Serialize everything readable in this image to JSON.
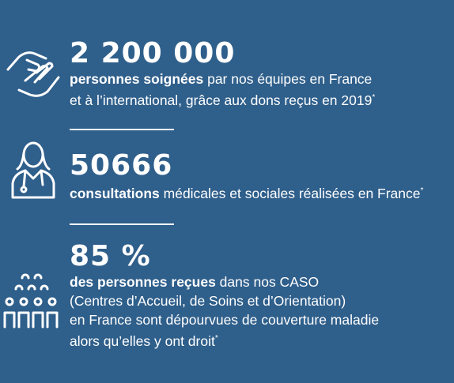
{
  "stats": [
    {
      "value": "2 200 000",
      "bold": "personnes soignées",
      "rest": " par nos équipes en France",
      "lines": [
        "et à l’international, grâce aux dons reçus en 2019"
      ],
      "note": "*"
    },
    {
      "value": "50666",
      "bold": "consultations",
      "rest": " médicales et sociales réalisées en France",
      "lines": [],
      "note": "*"
    },
    {
      "value": "85 %",
      "bold": "des personnes reçues",
      "rest": " dans nos CASO",
      "lines": [
        "(Centres d’Accueil, de Soins et d’Orientation)",
        "en France sont dépourvues de couverture maladie",
        "alors qu’elles y ont droit"
      ],
      "note": "*"
    }
  ]
}
